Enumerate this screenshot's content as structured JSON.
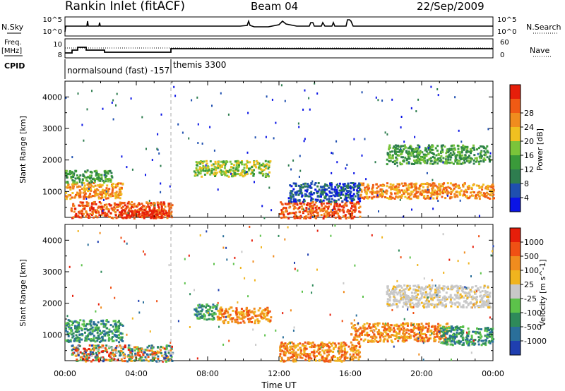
{
  "header": {
    "station": "Rankin Inlet (fitACF)",
    "beam": "Beam 04",
    "date": "22/Sep/2009"
  },
  "nsky_panel": {
    "left_label": "N.Sky",
    "left_ticks": [
      "10^5",
      "10^0"
    ],
    "right_label": "N.Search",
    "right_ticks": [
      "10^5",
      "10^0"
    ]
  },
  "freq_panel": {
    "left_label_1": "Freq.",
    "left_label_2": "[MHz]",
    "left_ticks": [
      "10",
      "8"
    ],
    "right_label": "Nave",
    "right_ticks": [
      "60",
      "0"
    ]
  },
  "cpid": {
    "label": "CPID",
    "mode_1": "normalsound (fast) -157",
    "mode_2": "themis 3300"
  },
  "chart_data": [
    {
      "type": "heatmap",
      "name": "power",
      "title": "",
      "xlabel": "",
      "ylabel": "Slant Range [km]",
      "xlim": [
        0,
        24
      ],
      "ylim": [
        180,
        4500
      ],
      "yticks": [
        1000,
        2000,
        3000,
        4000
      ],
      "colorbar": {
        "label": "Power [dB]",
        "ticks": [
          "4",
          "8",
          "12",
          "16",
          "20",
          "24",
          "28"
        ],
        "colors": [
          "#0a14e6",
          "#1f4fb0",
          "#2e7d4f",
          "#3a9a3a",
          "#7bc43a",
          "#f0c020",
          "#f08c1e",
          "#f05a14",
          "#e61e0a"
        ]
      },
      "regions": [
        {
          "t": [
            0.0,
            3.2
          ],
          "r": [
            800,
            1300
          ],
          "level": 6
        },
        {
          "t": [
            0.0,
            2.6
          ],
          "r": [
            1300,
            1700
          ],
          "level": 3
        },
        {
          "t": [
            0.3,
            6.0
          ],
          "r": [
            180,
            700
          ],
          "level": 7
        },
        {
          "t": [
            3.0,
            5.8
          ],
          "r": [
            180,
            450
          ],
          "level": 8
        },
        {
          "t": [
            7.2,
            11.5
          ],
          "r": [
            1500,
            2000
          ],
          "level": 4
        },
        {
          "t": [
            12.0,
            16.5
          ],
          "r": [
            180,
            700
          ],
          "level": 7
        },
        {
          "t": [
            16.5,
            24.0
          ],
          "r": [
            800,
            1300
          ],
          "level": 6
        },
        {
          "t": [
            18.0,
            23.8
          ],
          "r": [
            1900,
            2500
          ],
          "level": 3
        },
        {
          "t": [
            12.5,
            16.5
          ],
          "r": [
            700,
            1300
          ],
          "level": 1
        }
      ]
    },
    {
      "type": "heatmap",
      "name": "velocity",
      "title": "",
      "xlabel": "Time UT",
      "ylabel": "Slant Range [km]",
      "xlim": [
        0,
        24
      ],
      "ylim": [
        180,
        4500
      ],
      "xticks": [
        "00:00",
        "04:00",
        "08:00",
        "12:00",
        "16:00",
        "20:00",
        "00:00"
      ],
      "yticks": [
        1000,
        2000,
        3000,
        4000
      ],
      "colorbar": {
        "label": "Velocity [m s^-1]",
        "ticks": [
          "1000",
          "500",
          "100",
          "25",
          "-25",
          "-100",
          "-500",
          "-1000"
        ],
        "colors": [
          "#1f3fb0",
          "#2a6f9a",
          "#2e8a5a",
          "#5cc24a",
          "#c8c8c8",
          "#f0b41e",
          "#f08c1e",
          "#f05014",
          "#e61e0a"
        ]
      },
      "regions": [
        {
          "t": [
            0.0,
            3.2
          ],
          "r": [
            800,
            1500
          ],
          "class": "toward"
        },
        {
          "t": [
            0.3,
            6.0
          ],
          "r": [
            180,
            700
          ],
          "class": "mixed"
        },
        {
          "t": [
            7.2,
            8.5
          ],
          "r": [
            1500,
            2000
          ],
          "class": "toward"
        },
        {
          "t": [
            8.5,
            11.5
          ],
          "r": [
            1400,
            1900
          ],
          "class": "away"
        },
        {
          "t": [
            12.0,
            16.5
          ],
          "r": [
            180,
            800
          ],
          "class": "away"
        },
        {
          "t": [
            16.0,
            21.5
          ],
          "r": [
            800,
            1400
          ],
          "class": "away"
        },
        {
          "t": [
            21.0,
            24.0
          ],
          "r": [
            700,
            1300
          ],
          "class": "toward"
        },
        {
          "t": [
            18.0,
            23.8
          ],
          "r": [
            1900,
            2600
          ],
          "class": "ground"
        }
      ]
    }
  ]
}
